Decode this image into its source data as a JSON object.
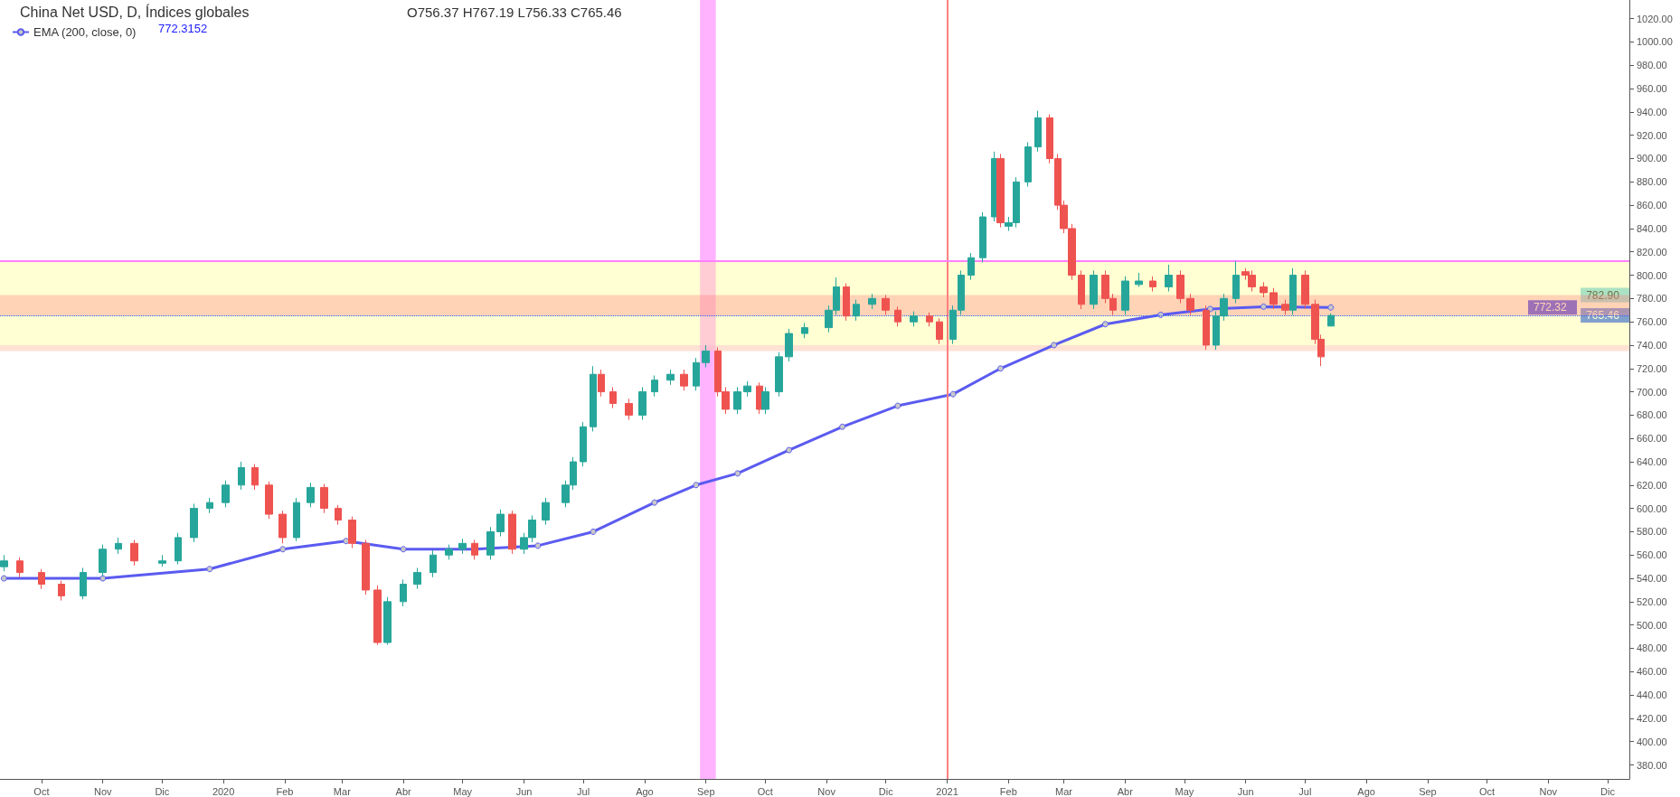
{
  "chart_data": {
    "type": "candlestick",
    "title": "China Net USD, D, Índices globales",
    "annotations": [
      "O756.37 H767.19 L756.33 C765.46",
      "772.3152",
      {
        "text": "782.90",
        "x": "2021-12-02",
        "y": 782.9
      },
      "772.32",
      {
        "text": "765.46",
        "x": "2021-12-02",
        "y": 765.46
      }
    ],
    "x": [
      "2019-09-12",
      "2019-09-20",
      "2019-10-01",
      "2019-10-11",
      "2019-10-22",
      "2019-11-01",
      "2019-11-09",
      "2019-11-17",
      "2019-12-01",
      "2019-12-09",
      "2019-12-17",
      "2019-12-25",
      "2020-01-02",
      "2020-01-10",
      "2020-01-17",
      "2020-01-24",
      "2020-01-31",
      "2020-02-07",
      "2020-02-14",
      "2020-02-21",
      "2020-02-28",
      "2020-03-06",
      "2020-03-13",
      "2020-03-19",
      "2020-03-24",
      "2020-04-01",
      "2020-04-08",
      "2020-04-16",
      "2020-04-24",
      "2020-05-01",
      "2020-05-07",
      "2020-05-15",
      "2020-05-20",
      "2020-05-26",
      "2020-06-01",
      "2020-06-05",
      "2020-06-12",
      "2020-06-22",
      "2020-06-26",
      "2020-07-01",
      "2020-07-06",
      "2020-07-10",
      "2020-07-16",
      "2020-07-24",
      "2020-07-31",
      "2020-08-06",
      "2020-08-14",
      "2020-08-21",
      "2020-08-27",
      "2020-09-01",
      "2020-09-07",
      "2020-09-11",
      "2020-09-17",
      "2020-09-22",
      "2020-09-28",
      "2020-10-01",
      "2020-10-08",
      "2020-10-13",
      "2020-10-21",
      "2020-11-02",
      "2020-11-06",
      "2020-11-11",
      "2020-11-16",
      "2020-11-24",
      "2020-12-01",
      "2020-12-07",
      "2020-12-15",
      "2020-12-23",
      "2020-12-28",
      "2021-01-04",
      "2021-01-08",
      "2021-01-13",
      "2021-01-19",
      "2021-01-25",
      "2021-01-28",
      "2021-02-01",
      "2021-02-05",
      "2021-02-11",
      "2021-02-16",
      "2021-02-22",
      "2021-02-26",
      "2021-03-01",
      "2021-03-05",
      "2021-03-10",
      "2021-03-16",
      "2021-03-22",
      "2021-03-26",
      "2021-04-01",
      "2021-04-08",
      "2021-04-15",
      "2021-04-23",
      "2021-04-29",
      "2021-05-04",
      "2021-05-12",
      "2021-05-17",
      "2021-05-21",
      "2021-05-27",
      "2021-06-01",
      "2021-06-04",
      "2021-06-10",
      "2021-06-15",
      "2021-06-21",
      "2021-06-25",
      "2021-07-01",
      "2021-07-06",
      "2021-07-09",
      "2021-07-14"
    ],
    "ohlc": [
      [
        550,
        560,
        546,
        555
      ],
      [
        555,
        558,
        541,
        545
      ],
      [
        545,
        548,
        531,
        535
      ],
      [
        535,
        538,
        521,
        525
      ],
      [
        525,
        549,
        522,
        545
      ],
      [
        545,
        569,
        542,
        565
      ],
      [
        565,
        575,
        561,
        570
      ],
      [
        570,
        573,
        551,
        555
      ],
      [
        553,
        560,
        550,
        555
      ],
      [
        555,
        579,
        552,
        575
      ],
      [
        575,
        604,
        571,
        600
      ],
      [
        600,
        609,
        596,
        605
      ],
      [
        605,
        624,
        601,
        620
      ],
      [
        620,
        640,
        616,
        635
      ],
      [
        635,
        638,
        616,
        620
      ],
      [
        620,
        623,
        591,
        595
      ],
      [
        595,
        598,
        570,
        575
      ],
      [
        575,
        609,
        572,
        605
      ],
      [
        605,
        622,
        601,
        618
      ],
      [
        618,
        621,
        596,
        600
      ],
      [
        600,
        603,
        586,
        590
      ],
      [
        590,
        593,
        566,
        570
      ],
      [
        570,
        573,
        526,
        530
      ],
      [
        530,
        534,
        483,
        485
      ],
      [
        485,
        524,
        483,
        520
      ],
      [
        520,
        539,
        516,
        535
      ],
      [
        535,
        549,
        531,
        545
      ],
      [
        545,
        564,
        541,
        560
      ],
      [
        560,
        569,
        556,
        565
      ],
      [
        565,
        574,
        561,
        570
      ],
      [
        570,
        573,
        556,
        560
      ],
      [
        560,
        584,
        556,
        580
      ],
      [
        580,
        599,
        576,
        595
      ],
      [
        595,
        598,
        561,
        565
      ],
      [
        565,
        579,
        561,
        575
      ],
      [
        575,
        594,
        571,
        590
      ],
      [
        590,
        609,
        586,
        605
      ],
      [
        605,
        624,
        601,
        620
      ],
      [
        620,
        644,
        616,
        640
      ],
      [
        640,
        674,
        636,
        670
      ],
      [
        670,
        722,
        666,
        715
      ],
      [
        715,
        719,
        696,
        700
      ],
      [
        700,
        704,
        686,
        690
      ],
      [
        690,
        694,
        676,
        680
      ],
      [
        680,
        704,
        676,
        700
      ],
      [
        700,
        714,
        696,
        710
      ],
      [
        710,
        719,
        706,
        715
      ],
      [
        715,
        719,
        701,
        705
      ],
      [
        705,
        729,
        701,
        725
      ],
      [
        725,
        740,
        721,
        735
      ],
      [
        735,
        738,
        696,
        700
      ],
      [
        700,
        704,
        681,
        685
      ],
      [
        685,
        704,
        681,
        700
      ],
      [
        700,
        709,
        696,
        705
      ],
      [
        705,
        708,
        681,
        685
      ],
      [
        685,
        704,
        681,
        700
      ],
      [
        700,
        734,
        696,
        730
      ],
      [
        730,
        754,
        726,
        750
      ],
      [
        750,
        759,
        746,
        755
      ],
      [
        755,
        774,
        751,
        770
      ],
      [
        770,
        798,
        766,
        790
      ],
      [
        790,
        793,
        761,
        765
      ],
      [
        765,
        779,
        761,
        775
      ],
      [
        775,
        784,
        771,
        780
      ],
      [
        780,
        783,
        766,
        770
      ],
      [
        770,
        773,
        756,
        760
      ],
      [
        760,
        769,
        756,
        765
      ],
      [
        765,
        768,
        756,
        760
      ],
      [
        760,
        763,
        741,
        745
      ],
      [
        745,
        774,
        741,
        770
      ],
      [
        770,
        804,
        766,
        800
      ],
      [
        800,
        819,
        796,
        815
      ],
      [
        815,
        854,
        811,
        850
      ],
      [
        850,
        906,
        846,
        900
      ],
      [
        900,
        904,
        841,
        845
      ],
      [
        842,
        850,
        838,
        845
      ],
      [
        845,
        884,
        841,
        880
      ],
      [
        880,
        914,
        876,
        910
      ],
      [
        910,
        941,
        906,
        935
      ],
      [
        935,
        938,
        896,
        900
      ],
      [
        900,
        904,
        856,
        860
      ],
      [
        860,
        864,
        836,
        840
      ],
      [
        840,
        844,
        796,
        800
      ],
      [
        800,
        804,
        771,
        775
      ],
      [
        775,
        804,
        771,
        800
      ],
      [
        800,
        804,
        776,
        780
      ],
      [
        780,
        784,
        766,
        770
      ],
      [
        770,
        799,
        766,
        795
      ],
      [
        792,
        802,
        790,
        795
      ],
      [
        795,
        799,
        786,
        790
      ],
      [
        790,
        809,
        786,
        800
      ],
      [
        800,
        804,
        776,
        780
      ],
      [
        780,
        784,
        766,
        770
      ],
      [
        770,
        774,
        736,
        740
      ],
      [
        740,
        769,
        736,
        765
      ],
      [
        765,
        784,
        761,
        780
      ],
      [
        780,
        812,
        776,
        800
      ],
      [
        803,
        806,
        796,
        800
      ],
      [
        800,
        804,
        786,
        790
      ],
      [
        790,
        794,
        781,
        785
      ],
      [
        785,
        789,
        771,
        775
      ],
      [
        775,
        779,
        766,
        770
      ],
      [
        770,
        806,
        766,
        800
      ],
      [
        800,
        804,
        771,
        775
      ],
      [
        775,
        779,
        741,
        745
      ],
      [
        745,
        749,
        722,
        730
      ],
      [
        756.37,
        767.19,
        756.33,
        765.46
      ]
    ],
    "series": [
      {
        "name": "EMA (200, close, 0)",
        "type": "line",
        "color": "#5b5bf0",
        "x": [
          "2019-09-12",
          "2019-11-01",
          "2019-12-25",
          "2020-01-31",
          "2020-03-03",
          "2020-04-01",
          "2020-05-07",
          "2020-06-08",
          "2020-07-06",
          "2020-08-06",
          "2020-08-27",
          "2020-09-17",
          "2020-10-13",
          "2020-11-09",
          "2020-12-07",
          "2021-01-04",
          "2021-01-28",
          "2021-02-24",
          "2021-03-22",
          "2021-04-19",
          "2021-05-14",
          "2021-06-10",
          "2021-07-14"
        ],
        "values": [
          540,
          540,
          548,
          565,
          572,
          565,
          565,
          568,
          580,
          605,
          620,
          630,
          650,
          670,
          688,
          698,
          720,
          740,
          758,
          766,
          771,
          773,
          772.32
        ]
      }
    ],
    "marker": "circle",
    "legend": "top left",
    "bands": [
      {
        "axis": "x",
        "from": "2020-08-29",
        "to": "2020-09-06",
        "color": "#ff80ff"
      },
      {
        "axis": "y",
        "from": 735,
        "to": 740,
        "color": "#ff80ff"
      },
      {
        "axis": "y",
        "from": 735,
        "to": 812,
        "color": "#ffff80"
      },
      {
        "axis": "y",
        "from": 765,
        "to": 782.9,
        "color": "#ff8080"
      }
    ],
    "ref_lines": [
      {
        "axis": "x",
        "value": "2021-01-01",
        "color": "#ff8080"
      },
      {
        "axis": "y",
        "value": 812,
        "color": "#ff80ff"
      },
      {
        "axis": "y",
        "value": 765.46,
        "color": "#2962ff",
        "line_style": "dotted"
      }
    ],
    "xlim": [
      "2019-09-10",
      "2021-12-12"
    ],
    "xticks": [
      {
        "value": "2019-10-01",
        "label": "Oct"
      },
      {
        "value": "2019-11-01",
        "label": "Nov"
      },
      {
        "value": "2019-12-01",
        "label": "Dic"
      },
      {
        "value": "2020-01-01",
        "label": "2020"
      },
      {
        "value": "2020-02-01",
        "label": "Feb"
      },
      {
        "value": "2020-03-01",
        "label": "Mar"
      },
      {
        "value": "2020-04-01",
        "label": "Abr"
      },
      {
        "value": "2020-05-01",
        "label": "May"
      },
      {
        "value": "2020-06-01",
        "label": "Jun"
      },
      {
        "value": "2020-07-01",
        "label": "Jul"
      },
      {
        "value": "2020-08-01",
        "label": "Ago"
      },
      {
        "value": "2020-09-01",
        "label": "Sep"
      },
      {
        "value": "2020-10-01",
        "label": "Oct"
      },
      {
        "value": "2020-11-01",
        "label": "Nov"
      },
      {
        "value": "2020-12-01",
        "label": "Dic"
      },
      {
        "value": "2021-01-01",
        "label": "2021"
      },
      {
        "value": "2021-02-01",
        "label": "Feb"
      },
      {
        "value": "2021-03-01",
        "label": "Mar"
      },
      {
        "value": "2021-04-01",
        "label": "Abr"
      },
      {
        "value": "2021-05-01",
        "label": "May"
      },
      {
        "value": "2021-06-01",
        "label": "Jun"
      },
      {
        "value": "2021-07-01",
        "label": "Jul"
      },
      {
        "value": "2021-08-01",
        "label": "Ago"
      },
      {
        "value": "2021-09-01",
        "label": "Sep"
      },
      {
        "value": "2021-10-01",
        "label": "Oct"
      },
      {
        "value": "2021-11-01",
        "label": "Nov"
      },
      {
        "value": "2021-12-01",
        "label": "Dic"
      }
    ],
    "ylim": [
      368,
      1036
    ],
    "yticks": [
      {
        "value": 380,
        "label": "380.00"
      },
      {
        "value": 400,
        "label": "400.00"
      },
      {
        "value": 420,
        "label": "420.00"
      },
      {
        "value": 440,
        "label": "440.00"
      },
      {
        "value": 460,
        "label": "460.00"
      },
      {
        "value": 480,
        "label": "480.00"
      },
      {
        "value": 500,
        "label": "500.00"
      },
      {
        "value": 520,
        "label": "520.00"
      },
      {
        "value": 540,
        "label": "540.00"
      },
      {
        "value": 560,
        "label": "560.00"
      },
      {
        "value": 580,
        "label": "580.00"
      },
      {
        "value": 600,
        "label": "600.00"
      },
      {
        "value": 620,
        "label": "620.00"
      },
      {
        "value": 640,
        "label": "640.00"
      },
      {
        "value": 660,
        "label": "660.00"
      },
      {
        "value": 680,
        "label": "680.00"
      },
      {
        "value": 700,
        "label": "700.00"
      },
      {
        "value": 720,
        "label": "720.00"
      },
      {
        "value": 740,
        "label": "740.00"
      },
      {
        "value": 760,
        "label": "760.00"
      },
      {
        "value": 780,
        "label": "780.00"
      },
      {
        "value": 800,
        "label": "800.00"
      },
      {
        "value": 820,
        "label": "820.00"
      },
      {
        "value": 840,
        "label": "840.00"
      },
      {
        "value": 860,
        "label": "860.00"
      },
      {
        "value": 880,
        "label": "880.00"
      },
      {
        "value": 900,
        "label": "900.00"
      },
      {
        "value": 920,
        "label": "920.00"
      },
      {
        "value": 940,
        "label": "940.00"
      },
      {
        "value": 960,
        "label": "960.00"
      },
      {
        "value": 980,
        "label": "980.00"
      },
      {
        "value": 1000,
        "label": "1000.00"
      },
      {
        "value": 1020,
        "label": "1020.00"
      }
    ],
    "grid": false
  }
}
